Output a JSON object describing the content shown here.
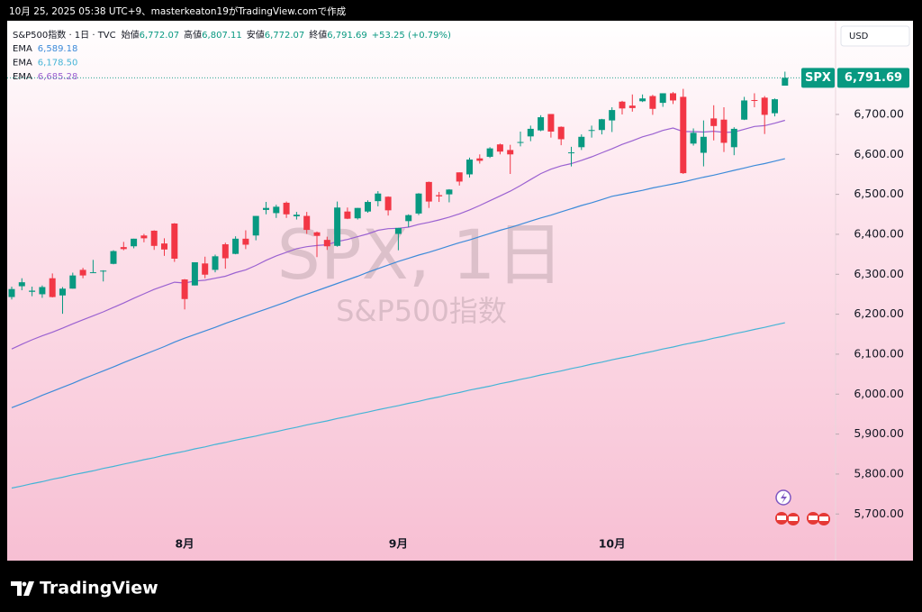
{
  "header": {
    "caption": "10月 25, 2025 05:38 UTC+9、masterkeaton19がTradingView.comで作成"
  },
  "legend": {
    "symbol": "S&P500指数 · 1日 · TVC",
    "items": [
      {
        "label": "始値",
        "value": "6,772.07"
      },
      {
        "label": "高値",
        "value": "6,807.11"
      },
      {
        "label": "安値",
        "value": "6,772.07"
      },
      {
        "label": "終値",
        "value": "6,791.69"
      }
    ],
    "change": "+53.25 (+0.79%)"
  },
  "currency": "USD",
  "watermark": {
    "title": "SPX, 1日",
    "subtitle": "S&P500指数"
  },
  "footer": {
    "brand": "TradingView"
  },
  "chart_data": {
    "type": "candlestick",
    "categories": [
      null,
      null,
      null,
      null,
      null,
      null,
      null,
      null,
      null,
      null,
      null,
      null,
      null,
      null,
      null,
      null,
      null,
      "8月",
      null,
      null,
      null,
      null,
      null,
      null,
      null,
      null,
      null,
      null,
      null,
      null,
      null,
      null,
      null,
      null,
      null,
      null,
      null,
      null,
      "9月",
      null,
      null,
      null,
      null,
      null,
      null,
      null,
      null,
      null,
      null,
      null,
      null,
      null,
      null,
      null,
      null,
      null,
      null,
      null,
      null,
      "10月",
      null,
      null,
      null,
      null,
      null,
      null,
      null,
      null,
      null,
      null,
      null,
      null,
      null,
      null,
      null,
      null,
      null
    ],
    "open": [
      6243,
      6270,
      6256,
      6250,
      6290,
      6247,
      6264,
      6311,
      6304,
      6307,
      6326,
      6368,
      6370,
      6397,
      6409,
      6377,
      6427,
      6287,
      6272,
      6327,
      6311,
      6375,
      6351,
      6389,
      6397,
      6461,
      6453,
      6479,
      6445,
      6446,
      6405,
      6386,
      6371,
      6457,
      6440,
      6457,
      6483,
      6494,
      6401,
      6433,
      6452,
      6531,
      6498,
      6500,
      6555,
      6550,
      6590,
      6594,
      6625,
      6611,
      6631,
      6645,
      6660,
      6701,
      6669,
      6605,
      6618,
      6661,
      6661,
      6685,
      6732,
      6722,
      6733,
      6746,
      6729,
      6753,
      6744,
      6627,
      6604,
      6690,
      6687,
      6618,
      6687,
      6736,
      6742,
      6703,
      6772.07
    ],
    "high": [
      6269,
      6290,
      6269,
      6272,
      6302,
      6268,
      6304,
      6316,
      6336,
      6310,
      6360,
      6381,
      6389,
      6401,
      6410,
      6390,
      6428,
      6288,
      6330,
      6344,
      6349,
      6379,
      6395,
      6410,
      6446,
      6481,
      6474,
      6482,
      6456,
      6456,
      6407,
      6394,
      6482,
      6467,
      6466,
      6485,
      6508,
      6495,
      6416,
      6450,
      6503,
      6532,
      6506,
      6513,
      6555,
      6592,
      6600,
      6618,
      6627,
      6624,
      6657,
      6672,
      6698,
      6701,
      6670,
      6619,
      6650,
      6672,
      6689,
      6718,
      6734,
      6750,
      6750,
      6749,
      6753,
      6756,
      6764,
      6665,
      6685,
      6723,
      6718,
      6668,
      6744,
      6753,
      6746,
      6740,
      6807.11
    ],
    "low": [
      6237,
      6260,
      6245,
      6241,
      6242,
      6201,
      6264,
      6290,
      6303,
      6282,
      6325,
      6360,
      6365,
      6380,
      6361,
      6346,
      6331,
      6212,
      6272,
      6290,
      6305,
      6314,
      6350,
      6363,
      6385,
      6450,
      6441,
      6441,
      6437,
      6401,
      6343,
      6361,
      6369,
      6438,
      6437,
      6454,
      6470,
      6447,
      6360,
      6418,
      6448,
      6466,
      6481,
      6480,
      6522,
      6542,
      6577,
      6591,
      6600,
      6551,
      6620,
      6633,
      6658,
      6642,
      6623,
      6570,
      6611,
      6642,
      6650,
      6656,
      6700,
      6707,
      6731,
      6699,
      6719,
      6726,
      6551,
      6622,
      6570,
      6635,
      6606,
      6598,
      6686,
      6718,
      6651,
      6695,
      6772.07
    ],
    "close": [
      6263,
      6280,
      6259,
      6268,
      6243,
      6264,
      6297,
      6297,
      6305,
      6309,
      6358,
      6363,
      6389,
      6390,
      6371,
      6362,
      6339,
      6238,
      6330,
      6299,
      6345,
      6340,
      6389,
      6374,
      6446,
      6466,
      6469,
      6450,
      6449,
      6411,
      6396,
      6370,
      6467,
      6439,
      6466,
      6481,
      6502,
      6460,
      6416,
      6448,
      6502,
      6482,
      6495,
      6512,
      6532,
      6587,
      6584,
      6615,
      6607,
      6600,
      6631,
      6664,
      6693,
      6657,
      6638,
      6605,
      6644,
      6661,
      6688,
      6711,
      6715,
      6716,
      6740,
      6714,
      6753,
      6735,
      6553,
      6654,
      6644,
      6671,
      6629,
      6664,
      6735,
      6735,
      6699,
      6738,
      6791.69
    ],
    "up_color": "#089981",
    "down_color": "#f23645",
    "series": [
      {
        "name": "EMA",
        "legend_value": "6,589.18",
        "color": "#3d8bd9",
        "values": [
          5966,
          5976,
          5986,
          5997,
          6007,
          6017,
          6027,
          6038,
          6048,
          6058,
          6068,
          6079,
          6089,
          6099,
          6109,
          6119,
          6130,
          6140,
          6149,
          6158,
          6167,
          6177,
          6186,
          6195,
          6204,
          6213,
          6222,
          6231,
          6241,
          6250,
          6259,
          6268,
          6277,
          6286,
          6295,
          6305,
          6314,
          6323,
          6332,
          6340,
          6348,
          6355,
          6363,
          6371,
          6379,
          6386,
          6394,
          6402,
          6410,
          6417,
          6425,
          6433,
          6441,
          6448,
          6456,
          6464,
          6472,
          6479,
          6487,
          6495,
          6500,
          6505,
          6510,
          6516,
          6521,
          6526,
          6531,
          6537,
          6543,
          6548,
          6554,
          6560,
          6566,
          6572,
          6577,
          6583,
          6589.18
        ]
      },
      {
        "name": "EMA",
        "legend_value": "6,178.50",
        "color": "#45b4d6",
        "values": [
          5765,
          5770,
          5776,
          5781,
          5787,
          5792,
          5798,
          5803,
          5808,
          5814,
          5819,
          5825,
          5830,
          5836,
          5841,
          5847,
          5852,
          5857,
          5863,
          5868,
          5874,
          5879,
          5885,
          5890,
          5895,
          5901,
          5906,
          5912,
          5917,
          5923,
          5928,
          5933,
          5939,
          5944,
          5950,
          5955,
          5961,
          5966,
          5971,
          5977,
          5982,
          5988,
          5993,
          5999,
          6004,
          6010,
          6015,
          6020,
          6026,
          6031,
          6037,
          6042,
          6048,
          6053,
          6058,
          6064,
          6069,
          6075,
          6080,
          6086,
          6091,
          6096,
          6102,
          6107,
          6113,
          6118,
          6124,
          6129,
          6134,
          6140,
          6145,
          6151,
          6156,
          6162,
          6167,
          6173,
          6178.5
        ]
      },
      {
        "name": "EMA",
        "legend_value": "6,685.28",
        "color": "#9b62d1",
        "values": [
          6113,
          6125,
          6136,
          6146,
          6155,
          6165,
          6176,
          6186,
          6196,
          6206,
          6217,
          6228,
          6240,
          6251,
          6262,
          6271,
          6280,
          6278,
          6283,
          6285,
          6290,
          6295,
          6304,
          6311,
          6322,
          6335,
          6346,
          6355,
          6364,
          6369,
          6372,
          6374,
          6382,
          6387,
          6394,
          6401,
          6410,
          6414,
          6415,
          6418,
          6425,
          6430,
          6436,
          6443,
          6451,
          6461,
          6472,
          6484,
          6496,
          6508,
          6522,
          6537,
          6552,
          6563,
          6571,
          6577,
          6585,
          6594,
          6604,
          6614,
          6625,
          6634,
          6644,
          6651,
          6660,
          6666,
          6657,
          6657,
          6656,
          6658,
          6655,
          6656,
          6663,
          6670,
          6672,
          6678,
          6685.28
        ]
      }
    ],
    "ylim": [
      5660,
      6930
    ],
    "yticks": [
      {
        "value": 5700,
        "label": "5,700.00"
      },
      {
        "value": 5800,
        "label": "5,800.00"
      },
      {
        "value": 5900,
        "label": "5,900.00"
      },
      {
        "value": 6000,
        "label": "6,000.00"
      },
      {
        "value": 6100,
        "label": "6,100.00"
      },
      {
        "value": 6200,
        "label": "6,200.00"
      },
      {
        "value": 6300,
        "label": "6,300.00"
      },
      {
        "value": 6400,
        "label": "6,400.00"
      },
      {
        "value": 6500,
        "label": "6,500.00"
      },
      {
        "value": 6600,
        "label": "6,600.00"
      },
      {
        "value": 6700,
        "label": "6,700.00"
      }
    ],
    "last_price": {
      "symbol": "SPX",
      "label": "6,791.69"
    }
  }
}
